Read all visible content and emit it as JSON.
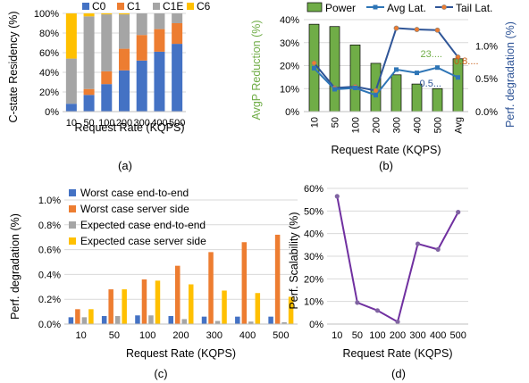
{
  "colors": {
    "c0": "#4472C4",
    "c1": "#ED7D31",
    "c1e": "#A5A5A5",
    "c6": "#FFC000",
    "power": "#70AD47",
    "avg_lat": "#2E75B6",
    "tail_lat": "#2F5597",
    "green_label": "#70AD47",
    "blue_label": "#2F5597",
    "orange_label": "#C55A11",
    "purple": "#7030A0",
    "grid": "#D9D9D9"
  },
  "captions": {
    "a": "(a)",
    "b": "(b)",
    "c": "(c)",
    "d": "(d)"
  },
  "chart_data": [
    {
      "id": "a",
      "type": "bar",
      "stacked": true,
      "categories": [
        "10",
        "50",
        "100",
        "200",
        "300",
        "400",
        "500"
      ],
      "series": [
        {
          "name": "C0",
          "color": "#4472C4",
          "values": [
            0.08,
            0.17,
            0.28,
            0.42,
            0.52,
            0.61,
            0.69
          ]
        },
        {
          "name": "C1",
          "color": "#ED7D31",
          "values": [
            0.0,
            0.06,
            0.13,
            0.22,
            0.26,
            0.23,
            0.21
          ]
        },
        {
          "name": "C1E",
          "color": "#A5A5A5",
          "values": [
            0.46,
            0.74,
            0.58,
            0.35,
            0.22,
            0.16,
            0.1
          ]
        },
        {
          "name": "C6",
          "color": "#FFC000",
          "values": [
            0.46,
            0.03,
            0.01,
            0.01,
            0.0,
            0.0,
            0.0
          ]
        }
      ],
      "xlabel": "Request Rate (KQPS)",
      "ylabel": "C-state Residency (%)",
      "ylim": [
        0,
        1
      ],
      "yticks": [
        "0%",
        "20%",
        "40%",
        "60%",
        "80%",
        "100%"
      ],
      "grid": true,
      "legend": "top"
    },
    {
      "id": "b",
      "type": "bar",
      "categories": [
        "10",
        "50",
        "100",
        "200",
        "300",
        "400",
        "500",
        "Avg"
      ],
      "series": [
        {
          "name": "Power",
          "kind": "bar",
          "axis": "left",
          "color": "#70AD47",
          "values": [
            0.38,
            0.37,
            0.29,
            0.21,
            0.16,
            0.12,
            0.1,
            0.23
          ]
        },
        {
          "name": "Avg Lat.",
          "kind": "line",
          "axis": "right",
          "color": "#2E75B6",
          "values": [
            0.0066,
            0.0034,
            0.0036,
            0.0025,
            0.0064,
            0.0059,
            0.0067,
            0.0052
          ]
        },
        {
          "name": "Tail Lat.",
          "kind": "line",
          "axis": "right",
          "color": "#2F5597",
          "values": [
            0.0074,
            0.0036,
            0.0038,
            0.0032,
            0.0127,
            0.0125,
            0.0124,
            0.0083
          ]
        }
      ],
      "xlabel": "Request Rate (KQPS)",
      "ylabel_left": "AvgP Reduction (%)",
      "ylabel_right": "Perf. degradation (%)",
      "ylim_left": [
        0,
        0.4
      ],
      "ylim_right": [
        0,
        0.014
      ],
      "yticks_left": [
        "0%",
        "10%",
        "20%",
        "30%",
        "40%"
      ],
      "yticks_right": [
        "0.0%",
        "0.5%",
        "1.0%"
      ],
      "annotations": [
        "23....",
        "0.8....",
        "0.5..."
      ],
      "grid": true,
      "legend": "top"
    },
    {
      "id": "c",
      "type": "bar",
      "categories": [
        "10",
        "50",
        "100",
        "200",
        "300",
        "400",
        "500"
      ],
      "series": [
        {
          "name": "Worst case end-to-end",
          "color": "#4472C4",
          "values": [
            0.055,
            0.065,
            0.07,
            0.065,
            0.06,
            0.06,
            0.06
          ]
        },
        {
          "name": "Worst case server side",
          "color": "#ED7D31",
          "values": [
            0.12,
            0.28,
            0.36,
            0.47,
            0.58,
            0.66,
            0.72
          ]
        },
        {
          "name": "Expected case end-to-end",
          "color": "#A5A5A5",
          "values": [
            0.055,
            0.065,
            0.07,
            0.04,
            0.025,
            0.02,
            0.015
          ]
        },
        {
          "name": "Expected case server side",
          "color": "#FFC000",
          "values": [
            0.12,
            0.28,
            0.35,
            0.32,
            0.27,
            0.25,
            0.22
          ]
        }
      ],
      "xlabel": "Request Rate (KQPS)",
      "ylabel": "Perf. degradation (%)",
      "ylim": [
        0,
        1.1
      ],
      "yticks": [
        "0.0%",
        "0.2%",
        "0.4%",
        "0.6%",
        "0.8%",
        "1.0%"
      ],
      "grid": true,
      "legend": "top-left"
    },
    {
      "id": "d",
      "type": "line",
      "categories": [
        "10",
        "50",
        "100",
        "200",
        "300",
        "400",
        "500"
      ],
      "series": [
        {
          "name": "",
          "color": "#7030A0",
          "values": [
            0.565,
            0.095,
            0.06,
            0.01,
            0.355,
            0.33,
            0.495
          ]
        }
      ],
      "xlabel": "Request Rate (KQPS)",
      "ylabel": "Perf. Scalability (%)",
      "ylim": [
        0,
        0.6
      ],
      "yticks": [
        "0%",
        "10%",
        "20%",
        "30%",
        "40%",
        "50%",
        "60%"
      ],
      "grid": true,
      "legend": "none"
    }
  ]
}
